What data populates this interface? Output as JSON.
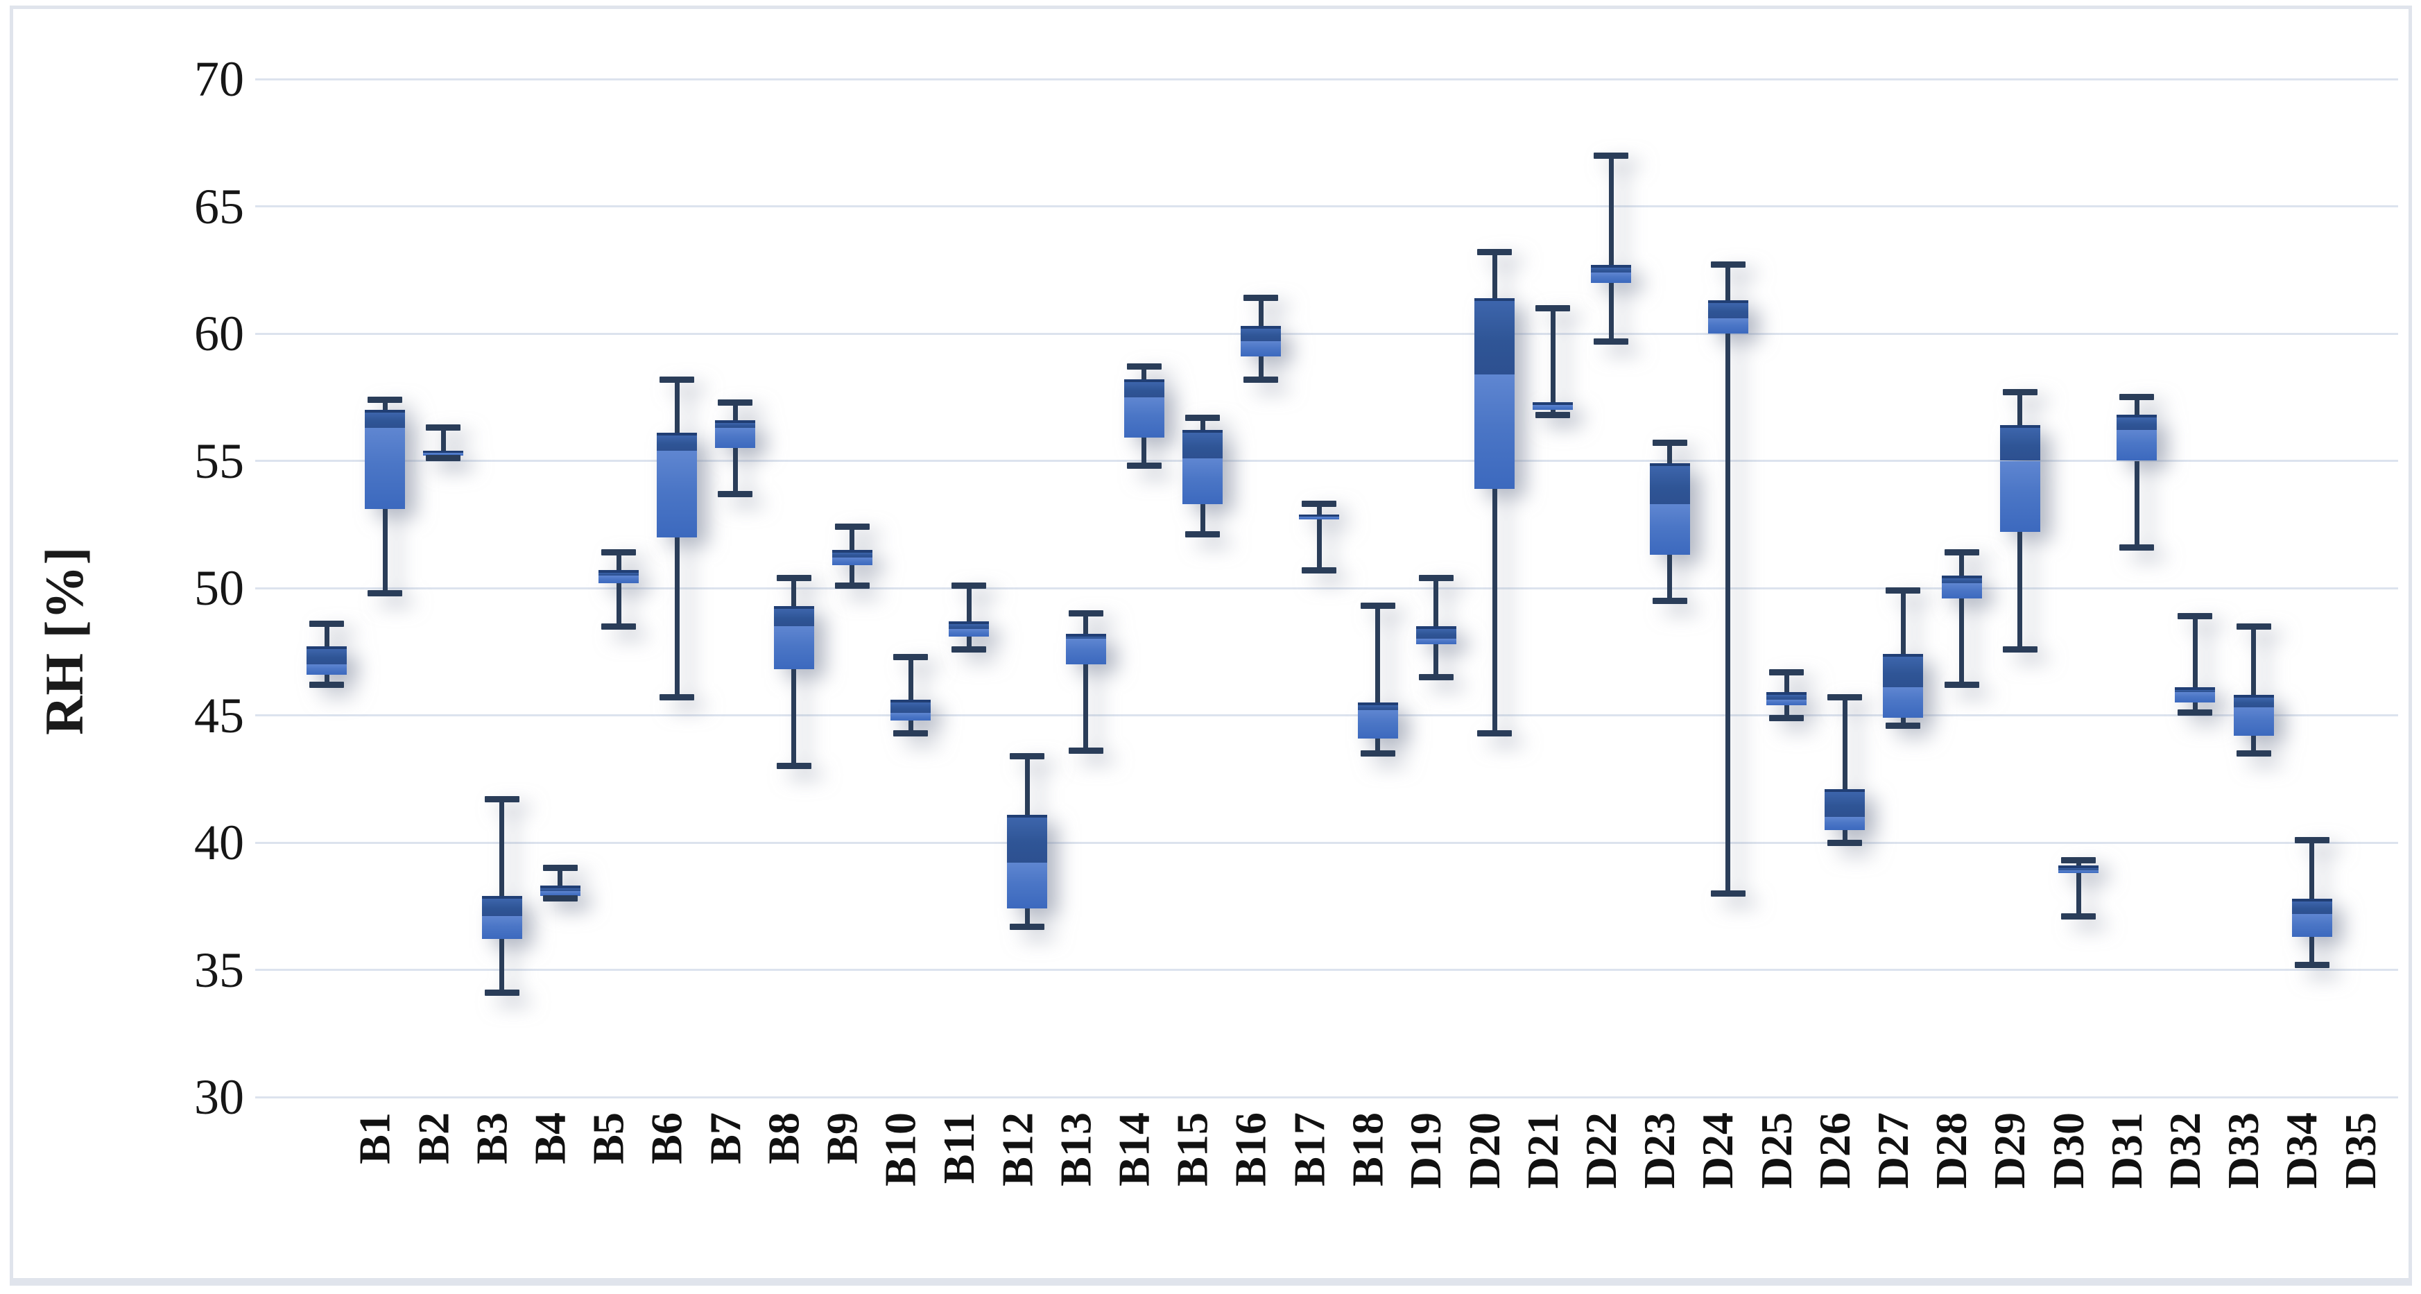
{
  "chart_data": {
    "type": "boxplot",
    "title": "",
    "xlabel": "",
    "ylabel": "RH [%]",
    "ylim": [
      30,
      70
    ],
    "yticks": [
      70,
      65,
      60,
      55,
      50,
      45,
      40,
      35,
      30
    ],
    "grid": "horizontal",
    "legend": "none",
    "categories": [
      "B1",
      "B2",
      "B3",
      "B4",
      "B5",
      "B6",
      "B7",
      "B8",
      "B9",
      "B10",
      "B11",
      "B12",
      "B13",
      "B14",
      "B15",
      "B16",
      "B17",
      "B18",
      "D19",
      "D20",
      "D21",
      "D22",
      "D23",
      "D24",
      "D25",
      "D26",
      "D27",
      "D28",
      "D29",
      "D30",
      "D31",
      "D32",
      "D33",
      "D34",
      "D35"
    ],
    "series": [
      {
        "name": "RH",
        "points": [
          {
            "label": "B1",
            "min": 46.2,
            "q1": 46.6,
            "median": 47.0,
            "q3": 47.7,
            "max": 48.6
          },
          {
            "label": "B2",
            "min": 49.8,
            "q1": 53.1,
            "median": 56.3,
            "q3": 57.0,
            "max": 57.4
          },
          {
            "label": "B3",
            "min": 55.1,
            "q1": 55.2,
            "median": 55.3,
            "q3": 55.4,
            "max": 56.3
          },
          {
            "label": "B4",
            "min": 34.1,
            "q1": 36.2,
            "median": 37.1,
            "q3": 37.9,
            "max": 41.7
          },
          {
            "label": "B5",
            "min": 37.8,
            "q1": 37.9,
            "median": 38.1,
            "q3": 38.3,
            "max": 39.0
          },
          {
            "label": "B6",
            "min": 48.5,
            "q1": 50.2,
            "median": 50.5,
            "q3": 50.7,
            "max": 51.4
          },
          {
            "label": "B7",
            "min": 45.7,
            "q1": 52.0,
            "median": 55.4,
            "q3": 56.1,
            "max": 58.2
          },
          {
            "label": "B8",
            "min": 53.7,
            "q1": 55.5,
            "median": 56.3,
            "q3": 56.6,
            "max": 57.3
          },
          {
            "label": "B9",
            "min": 43.0,
            "q1": 46.8,
            "median": 48.5,
            "q3": 49.3,
            "max": 50.4
          },
          {
            "label": "B10",
            "min": 50.1,
            "q1": 50.9,
            "median": 51.2,
            "q3": 51.5,
            "max": 52.4
          },
          {
            "label": "B11",
            "min": 44.3,
            "q1": 44.8,
            "median": 45.1,
            "q3": 45.6,
            "max": 47.3
          },
          {
            "label": "B12",
            "min": 47.6,
            "q1": 48.1,
            "median": 48.4,
            "q3": 48.7,
            "max": 50.1
          },
          {
            "label": "B13",
            "min": 36.7,
            "q1": 37.4,
            "median": 39.2,
            "q3": 41.1,
            "max": 43.4
          },
          {
            "label": "B14",
            "min": 43.6,
            "q1": 47.0,
            "median": 48.0,
            "q3": 48.2,
            "max": 49.0
          },
          {
            "label": "B15",
            "min": 54.8,
            "q1": 55.9,
            "median": 57.5,
            "q3": 58.2,
            "max": 58.7
          },
          {
            "label": "B16",
            "min": 52.1,
            "q1": 53.3,
            "median": 55.1,
            "q3": 56.2,
            "max": 56.7
          },
          {
            "label": "B17",
            "min": 58.2,
            "q1": 59.1,
            "median": 59.7,
            "q3": 60.3,
            "max": 61.4
          },
          {
            "label": "B18",
            "min": 50.7,
            "q1": 52.7,
            "median": 52.8,
            "q3": 52.9,
            "max": 53.3
          },
          {
            "label": "D19",
            "min": 43.5,
            "q1": 44.1,
            "median": 45.2,
            "q3": 45.5,
            "max": 49.3
          },
          {
            "label": "D20",
            "min": 46.5,
            "q1": 47.8,
            "median": 48.0,
            "q3": 48.5,
            "max": 50.4
          },
          {
            "label": "D21",
            "min": 44.3,
            "q1": 53.9,
            "median": 58.4,
            "q3": 61.4,
            "max": 63.2
          },
          {
            "label": "D22",
            "min": 56.8,
            "q1": 57.0,
            "median": 57.2,
            "q3": 57.3,
            "max": 61.0
          },
          {
            "label": "D23",
            "min": 59.7,
            "q1": 62.0,
            "median": 62.4,
            "q3": 62.7,
            "max": 67.0
          },
          {
            "label": "D24",
            "min": 49.5,
            "q1": 51.3,
            "median": 53.3,
            "q3": 54.9,
            "max": 55.7
          },
          {
            "label": "D25",
            "min": 38.0,
            "q1": 60.0,
            "median": 60.6,
            "q3": 61.3,
            "max": 62.7
          },
          {
            "label": "D26",
            "min": 44.9,
            "q1": 45.4,
            "median": 45.6,
            "q3": 45.9,
            "max": 46.7
          },
          {
            "label": "D27",
            "min": 40.0,
            "q1": 40.5,
            "median": 41.0,
            "q3": 42.1,
            "max": 45.7
          },
          {
            "label": "D28",
            "min": 44.6,
            "q1": 44.9,
            "median": 46.1,
            "q3": 47.4,
            "max": 49.9
          },
          {
            "label": "D29",
            "min": 46.2,
            "q1": 49.6,
            "median": 50.2,
            "q3": 50.5,
            "max": 51.4
          },
          {
            "label": "D30",
            "min": 47.6,
            "q1": 52.2,
            "median": 55.0,
            "q3": 56.4,
            "max": 57.7
          },
          {
            "label": "D31",
            "min": 37.1,
            "q1": 38.8,
            "median": 38.9,
            "q3": 39.1,
            "max": 39.3
          },
          {
            "label": "D32",
            "min": 51.6,
            "q1": 55.0,
            "median": 56.2,
            "q3": 56.8,
            "max": 57.5
          },
          {
            "label": "D33",
            "min": 45.1,
            "q1": 45.5,
            "median": 45.9,
            "q3": 46.1,
            "max": 48.9
          },
          {
            "label": "D34",
            "min": 43.5,
            "q1": 44.2,
            "median": 45.3,
            "q3": 45.8,
            "max": 48.5
          },
          {
            "label": "D35",
            "min": 35.2,
            "q1": 36.3,
            "median": 37.2,
            "q3": 37.8,
            "max": 40.1
          }
        ]
      }
    ]
  },
  "colors": {
    "box_upper": "#2f5596",
    "box_upper_edge": "#203e74",
    "box_lower": "#4b76c6",
    "whisker": "#2a3d59",
    "gridline": "#dce3ee",
    "tick_text": "#161616",
    "frame_border": "#e0e4ec",
    "background": "#ffffff"
  }
}
